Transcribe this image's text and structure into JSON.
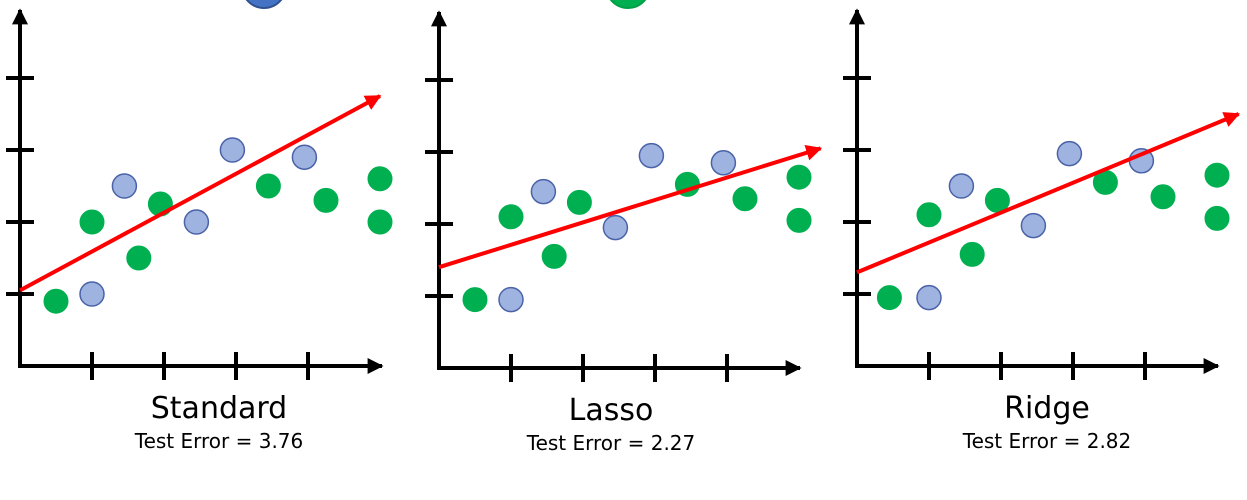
{
  "colors": {
    "axis": "#000000",
    "point_fill_green": "#00b050",
    "point_fill_blue": "#9fb3e0",
    "point_stroke_blue": "#4a62a8",
    "fit_line": "#ff0000",
    "top_circle_blue": "#4472c4",
    "top_circle_green": "#00b050"
  },
  "panels": [
    {
      "title": "Standard",
      "error_text": "Test Error = 3.76",
      "points": [
        {
          "x": 0.5,
          "y": 0.9,
          "group": "green"
        },
        {
          "x": 1.0,
          "y": 1.0,
          "group": "blue"
        },
        {
          "x": 1.0,
          "y": 2.0,
          "group": "green"
        },
        {
          "x": 1.45,
          "y": 2.5,
          "group": "blue"
        },
        {
          "x": 1.65,
          "y": 1.5,
          "group": "green"
        },
        {
          "x": 1.95,
          "y": 2.25,
          "group": "green"
        },
        {
          "x": 2.45,
          "y": 2.0,
          "group": "blue"
        },
        {
          "x": 2.95,
          "y": 3.0,
          "group": "blue"
        },
        {
          "x": 3.45,
          "y": 2.5,
          "group": "green"
        },
        {
          "x": 3.95,
          "y": 2.9,
          "group": "blue"
        },
        {
          "x": 4.25,
          "y": 2.3,
          "group": "green"
        },
        {
          "x": 5.0,
          "y": 2.6,
          "group": "green"
        },
        {
          "x": 5.0,
          "y": 2.0,
          "group": "green"
        }
      ],
      "fit_line": {
        "x1": 0.0,
        "y1": 1.05,
        "x2": 5.0,
        "y2": 3.75
      }
    },
    {
      "title": "Lasso",
      "error_text": "Test Error = 2.27",
      "points": [
        {
          "x": 0.5,
          "y": 0.95,
          "group": "green"
        },
        {
          "x": 1.0,
          "y": 0.95,
          "group": "blue"
        },
        {
          "x": 1.0,
          "y": 2.1,
          "group": "green"
        },
        {
          "x": 1.45,
          "y": 2.45,
          "group": "blue"
        },
        {
          "x": 1.6,
          "y": 1.55,
          "group": "green"
        },
        {
          "x": 1.95,
          "y": 2.3,
          "group": "green"
        },
        {
          "x": 2.45,
          "y": 1.95,
          "group": "blue"
        },
        {
          "x": 2.95,
          "y": 2.95,
          "group": "blue"
        },
        {
          "x": 3.45,
          "y": 2.55,
          "group": "green"
        },
        {
          "x": 3.95,
          "y": 2.85,
          "group": "blue"
        },
        {
          "x": 4.25,
          "y": 2.35,
          "group": "green"
        },
        {
          "x": 5.0,
          "y": 2.65,
          "group": "green"
        },
        {
          "x": 5.0,
          "y": 2.05,
          "group": "green"
        }
      ],
      "fit_line": {
        "x1": 0.0,
        "y1": 1.4,
        "x2": 5.3,
        "y2": 3.05
      }
    },
    {
      "title": "Ridge",
      "error_text": "Test Error = 2.82",
      "points": [
        {
          "x": 0.45,
          "y": 0.95,
          "group": "green"
        },
        {
          "x": 1.0,
          "y": 0.95,
          "group": "blue"
        },
        {
          "x": 1.0,
          "y": 2.1,
          "group": "green"
        },
        {
          "x": 1.45,
          "y": 2.5,
          "group": "blue"
        },
        {
          "x": 1.6,
          "y": 1.55,
          "group": "green"
        },
        {
          "x": 1.95,
          "y": 2.3,
          "group": "green"
        },
        {
          "x": 2.45,
          "y": 1.95,
          "group": "blue"
        },
        {
          "x": 2.95,
          "y": 2.95,
          "group": "blue"
        },
        {
          "x": 3.45,
          "y": 2.55,
          "group": "green"
        },
        {
          "x": 3.95,
          "y": 2.85,
          "group": "blue"
        },
        {
          "x": 4.25,
          "y": 2.35,
          "group": "green"
        },
        {
          "x": 5.0,
          "y": 2.65,
          "group": "green"
        },
        {
          "x": 5.0,
          "y": 2.05,
          "group": "green"
        }
      ],
      "fit_line": {
        "x1": 0.0,
        "y1": 1.3,
        "x2": 5.3,
        "y2": 3.5
      }
    }
  ]
}
